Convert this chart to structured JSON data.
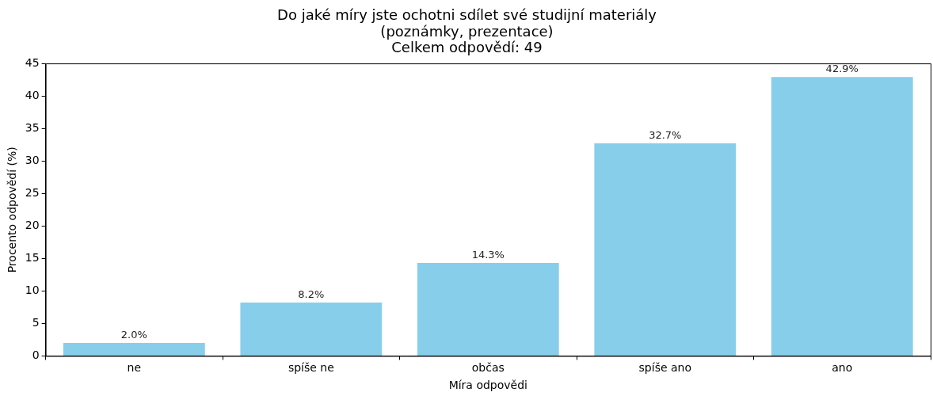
{
  "chart_data": {
    "type": "bar",
    "title": "Do jaké míry jste ochotni sdílet své studijní materiály\n(poznámky, prezentace)\nCelkem odpovědí: 49",
    "xlabel": "Míra odpovědi",
    "ylabel": "Procento odpovědí (%)",
    "categories": [
      "ne",
      "spíše ne",
      "občas",
      "spíše ano",
      "ano"
    ],
    "values": [
      2.0,
      8.2,
      14.3,
      32.7,
      42.9
    ],
    "value_labels": [
      "2.0%",
      "8.2%",
      "14.3%",
      "32.7%",
      "42.9%"
    ],
    "color": "#87ceeb",
    "ylim": [
      0,
      45
    ],
    "yticks": [
      0,
      5,
      10,
      15,
      20,
      25,
      30,
      35,
      40,
      45
    ],
    "legend": false
  }
}
